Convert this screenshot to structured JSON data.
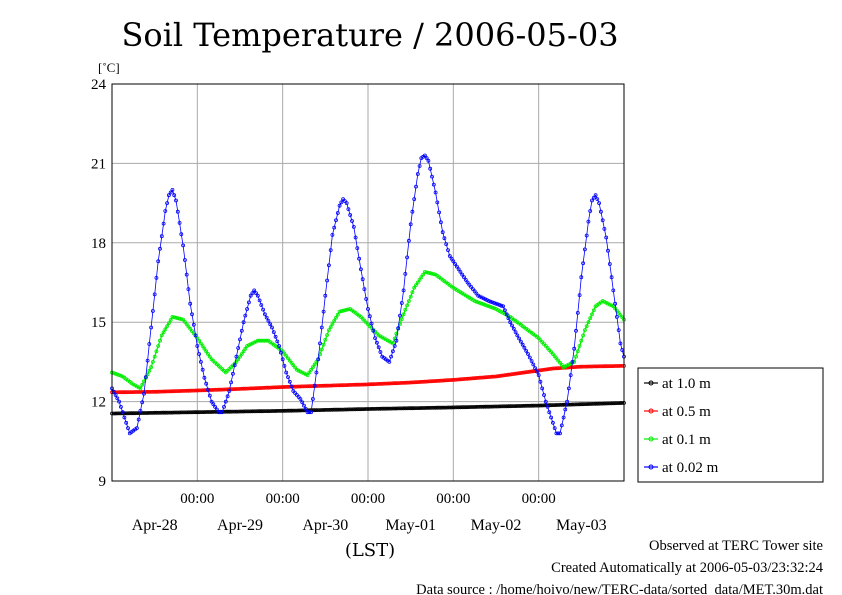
{
  "chart_data": {
    "type": "line",
    "title": "Soil Temperature / 2006-05-03",
    "ylabel": "[˚C]",
    "xlabel": "(LST)",
    "ylim": [
      9,
      24
    ],
    "yticks": [
      "9",
      "12",
      "15",
      "18",
      "21",
      "24"
    ],
    "xlim": [
      0,
      144
    ],
    "xticks": [
      {
        "x": 24,
        "time": "00:00",
        "date": "Apr-28"
      },
      {
        "x": 48,
        "time": "00:00",
        "date": "Apr-29"
      },
      {
        "x": 72,
        "time": "00:00",
        "date": "Apr-30"
      },
      {
        "x": 96,
        "time": "00:00",
        "date": "May-01"
      },
      {
        "x": 120,
        "time": "00:00",
        "date": "May-02"
      },
      {
        "x": 144,
        "time": "",
        "date": "May-03"
      }
    ],
    "grid": true,
    "legend_position": "right",
    "series": [
      {
        "name": "at 1.0 m",
        "color": "#000000",
        "points": [
          [
            0,
            11.55
          ],
          [
            24,
            11.6
          ],
          [
            48,
            11.65
          ],
          [
            72,
            11.72
          ],
          [
            96,
            11.78
          ],
          [
            120,
            11.85
          ],
          [
            144,
            11.95
          ]
        ]
      },
      {
        "name": "at 0.5 m",
        "color": "#ff0000",
        "points": [
          [
            0,
            12.35
          ],
          [
            12,
            12.37
          ],
          [
            24,
            12.42
          ],
          [
            36,
            12.48
          ],
          [
            48,
            12.55
          ],
          [
            60,
            12.6
          ],
          [
            72,
            12.65
          ],
          [
            84,
            12.72
          ],
          [
            96,
            12.82
          ],
          [
            108,
            12.95
          ],
          [
            116,
            13.1
          ],
          [
            124,
            13.25
          ],
          [
            132,
            13.32
          ],
          [
            144,
            13.35
          ]
        ]
      },
      {
        "name": "at 0.1 m",
        "color": "#00ee00",
        "points": [
          [
            0,
            13.1
          ],
          [
            3,
            12.95
          ],
          [
            6,
            12.65
          ],
          [
            8,
            12.5
          ],
          [
            11,
            13.3
          ],
          [
            14,
            14.5
          ],
          [
            17,
            15.2
          ],
          [
            20,
            15.1
          ],
          [
            24,
            14.4
          ],
          [
            28,
            13.6
          ],
          [
            32,
            13.1
          ],
          [
            35,
            13.5
          ],
          [
            38,
            14.1
          ],
          [
            41,
            14.3
          ],
          [
            44,
            14.3
          ],
          [
            48,
            13.9
          ],
          [
            52,
            13.2
          ],
          [
            55,
            13.0
          ],
          [
            58,
            13.6
          ],
          [
            61,
            14.7
          ],
          [
            64,
            15.4
          ],
          [
            67,
            15.5
          ],
          [
            70,
            15.2
          ],
          [
            75,
            14.5
          ],
          [
            79,
            14.2
          ],
          [
            82,
            15.3
          ],
          [
            85,
            16.3
          ],
          [
            88,
            16.9
          ],
          [
            91,
            16.8
          ],
          [
            96,
            16.3
          ],
          [
            102,
            15.8
          ],
          [
            108,
            15.5
          ],
          [
            112,
            15.2
          ],
          [
            117,
            14.7
          ],
          [
            120,
            14.4
          ],
          [
            124,
            13.8
          ],
          [
            127,
            13.3
          ],
          [
            130,
            13.5
          ],
          [
            133,
            14.7
          ],
          [
            136,
            15.6
          ],
          [
            138,
            15.8
          ],
          [
            141,
            15.6
          ],
          [
            144,
            15.1
          ]
        ]
      },
      {
        "name": "at 0.02 m",
        "color": "#0000ff",
        "points": [
          [
            0,
            12.5
          ],
          [
            2,
            12.0
          ],
          [
            4,
            11.2
          ],
          [
            5,
            10.8
          ],
          [
            7,
            11.0
          ],
          [
            9,
            12.3
          ],
          [
            11,
            14.8
          ],
          [
            13,
            17.3
          ],
          [
            15,
            19.2
          ],
          [
            16,
            19.8
          ],
          [
            17,
            20.0
          ],
          [
            18,
            19.6
          ],
          [
            20,
            17.9
          ],
          [
            22,
            15.7
          ],
          [
            24,
            14.1
          ],
          [
            26,
            12.9
          ],
          [
            28,
            12.0
          ],
          [
            30,
            11.6
          ],
          [
            31,
            11.6
          ],
          [
            33,
            12.4
          ],
          [
            35,
            13.7
          ],
          [
            37,
            15.0
          ],
          [
            39,
            16.0
          ],
          [
            40,
            16.2
          ],
          [
            41,
            16.0
          ],
          [
            43,
            15.3
          ],
          [
            45,
            14.8
          ],
          [
            47,
            14.1
          ],
          [
            49,
            13.1
          ],
          [
            51,
            12.4
          ],
          [
            53,
            12.1
          ],
          [
            55,
            11.6
          ],
          [
            56,
            11.6
          ],
          [
            58,
            13.6
          ],
          [
            60,
            16.0
          ],
          [
            62,
            18.3
          ],
          [
            64,
            19.4
          ],
          [
            65,
            19.65
          ],
          [
            66,
            19.5
          ],
          [
            68,
            18.6
          ],
          [
            70,
            17.0
          ],
          [
            72,
            15.5
          ],
          [
            74,
            14.4
          ],
          [
            76,
            13.7
          ],
          [
            78,
            13.5
          ],
          [
            80,
            14.3
          ],
          [
            82,
            16.2
          ],
          [
            84,
            18.7
          ],
          [
            86,
            20.6
          ],
          [
            87,
            21.2
          ],
          [
            88,
            21.3
          ],
          [
            89,
            21.1
          ],
          [
            91,
            19.9
          ],
          [
            93,
            18.4
          ],
          [
            95,
            17.5
          ],
          [
            97,
            17.1
          ],
          [
            100,
            16.5
          ],
          [
            103,
            16.0
          ],
          [
            106,
            15.8
          ],
          [
            108,
            15.7
          ],
          [
            110,
            15.6
          ],
          [
            112,
            15.0
          ],
          [
            114,
            14.5
          ],
          [
            117,
            13.8
          ],
          [
            120,
            13.0
          ],
          [
            122,
            12.0
          ],
          [
            124,
            11.2
          ],
          [
            125,
            10.8
          ],
          [
            126,
            10.8
          ],
          [
            128,
            12.0
          ],
          [
            130,
            14.0
          ],
          [
            132,
            16.7
          ],
          [
            134,
            18.8
          ],
          [
            135,
            19.6
          ],
          [
            136,
            19.8
          ],
          [
            137,
            19.5
          ],
          [
            139,
            18.2
          ],
          [
            141,
            16.2
          ],
          [
            143,
            14.2
          ],
          [
            144,
            13.7
          ]
        ]
      }
    ]
  },
  "footer": {
    "site": "Observed at TERC Tower site",
    "created": "Created Automatically at 2006-05-03/23:32:24",
    "source": "Data source : /home/hoivo/new/TERC-data/sorted  data/MET.30m.dat"
  }
}
